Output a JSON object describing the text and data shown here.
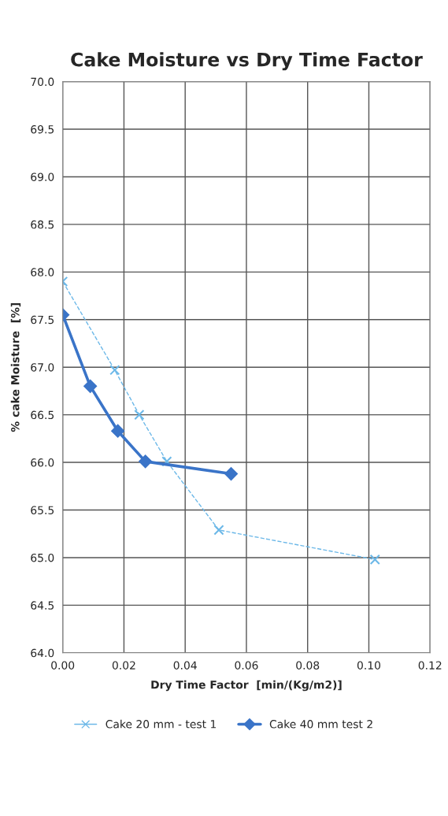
{
  "chart_data": {
    "type": "line",
    "title": "Cake Moisture vs Dry Time Factor",
    "xlabel": "Dry Time Factor  [min/(Kg/m2)]",
    "ylabel": "% cake Moisture  [%]",
    "xlim": [
      0,
      0.12
    ],
    "xticks": [
      {
        "value": 0,
        "label": "0.00"
      },
      {
        "value": 0.02,
        "label": "0.02"
      },
      {
        "value": 0.04,
        "label": "0.04"
      },
      {
        "value": 0.06,
        "label": "0.06"
      },
      {
        "value": 0.08,
        "label": "0.08"
      },
      {
        "value": 0.1,
        "label": "0.10"
      },
      {
        "value": 0.12,
        "label": "0.12"
      }
    ],
    "ylim": [
      64,
      70
    ],
    "yticks": [
      {
        "value": 64,
        "label": "64.0"
      },
      {
        "value": 64.5,
        "label": "64.5"
      },
      {
        "value": 65,
        "label": "65.0"
      },
      {
        "value": 65.5,
        "label": "65.5"
      },
      {
        "value": 66,
        "label": "66.0"
      },
      {
        "value": 66.5,
        "label": "66.5"
      },
      {
        "value": 67,
        "label": "67.0"
      },
      {
        "value": 67.5,
        "label": "67.5"
      },
      {
        "value": 68,
        "label": "68.0"
      },
      {
        "value": 68.5,
        "label": "68.5"
      },
      {
        "value": 69,
        "label": "69.0"
      },
      {
        "value": 69.5,
        "label": "69.5"
      },
      {
        "value": 70,
        "label": "70.0"
      }
    ],
    "grid": true,
    "legend": "bottom",
    "series": [
      {
        "name": "Cake 20 mm - test 1",
        "color": "#6cb8e8",
        "marker": "cross",
        "line_style": "dashed",
        "x": [
          0,
          0.017,
          0.025,
          0.034,
          0.051,
          0.102
        ],
        "values": [
          67.9,
          66.97,
          66.5,
          66.01,
          65.29,
          64.98
        ]
      },
      {
        "name": "Cake 40 mm test 2",
        "color": "#3a74c8",
        "marker": "diamond",
        "line_style": "solid",
        "x": [
          0,
          0.009,
          0.018,
          0.027,
          0.055
        ],
        "values": [
          67.55,
          66.8,
          66.33,
          66.01,
          65.88
        ]
      }
    ]
  }
}
